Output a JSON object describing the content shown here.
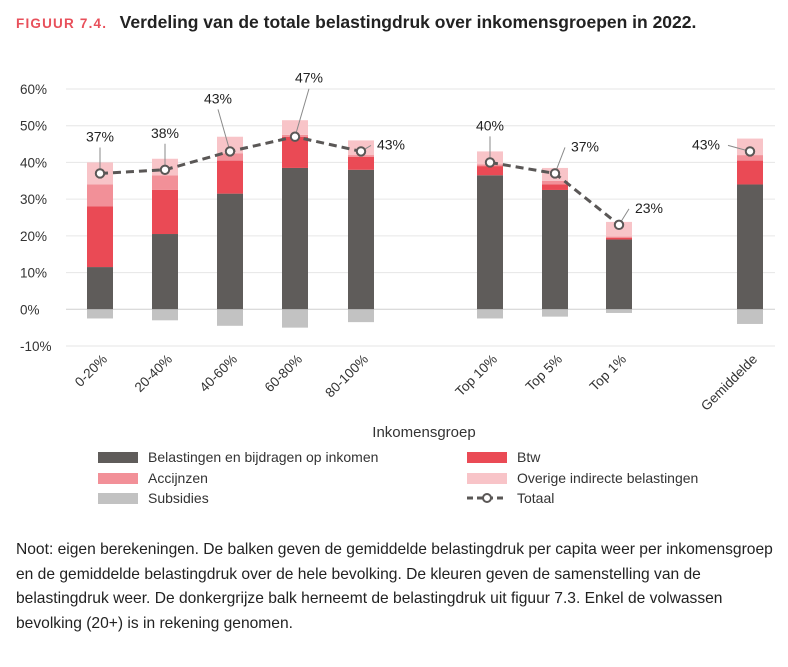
{
  "figure": {
    "label": "FIGUUR 7.4.",
    "title": "Verdeling van de totale belastingdruk over inkomensgroepen in 2022."
  },
  "note": "Noot: eigen berekeningen. De balken geven de gemiddelde belastingdruk per capita weer per inkomensgroep en de gemiddelde belastingdruk over de hele bevolking. De kleuren geven de samenstelling van de belastingdruk weer. De donkergrijze balk herneemt de belastingdruk uit figuur 7.3. Enkel de volwassen bevolking (20+) is in rekening genomen.",
  "chart_data": {
    "type": "bar",
    "stacked": true,
    "xlabel": "Inkomensgroep",
    "ylim": [
      -10,
      60
    ],
    "y_ticks": [
      -10,
      0,
      10,
      20,
      30,
      40,
      50,
      60
    ],
    "y_tick_suffix": "%",
    "categories": [
      "0-20%",
      "20-40%",
      "40-60%",
      "60-80%",
      "80-100%",
      "Top 10%",
      "Top 5%",
      "Top 1%",
      "Gemiddelde"
    ],
    "series": [
      {
        "name": "Belastingen en bijdragen op inkomen",
        "color": "#5f5c5a",
        "values": [
          11.5,
          20.5,
          31.5,
          38.5,
          38.0,
          36.5,
          32.5,
          19.0,
          34.0
        ]
      },
      {
        "name": "Btw",
        "color": "#ea4a55",
        "values": [
          16.5,
          12.0,
          9.0,
          8.5,
          3.5,
          2.5,
          1.5,
          0.5,
          6.5
        ]
      },
      {
        "name": "Accijnzen",
        "color": "#f29098",
        "values": [
          6.0,
          4.0,
          2.0,
          0.5,
          0.5,
          0.5,
          1.0,
          0.3,
          1.5
        ]
      },
      {
        "name": "Overige indirecte belastingen",
        "color": "#f8c4c8",
        "values": [
          6.0,
          4.5,
          4.5,
          4.0,
          4.0,
          3.5,
          3.5,
          4.0,
          4.5
        ]
      },
      {
        "name": "Subsidies",
        "color": "#c2c2c2",
        "values": [
          -2.5,
          -3.0,
          -4.5,
          -5.0,
          -3.5,
          -2.5,
          -2.0,
          -1.0,
          -4.0
        ]
      }
    ],
    "totals": {
      "name": "Totaal",
      "values": [
        37,
        38,
        43,
        47,
        43,
        40,
        37,
        23,
        43
      ],
      "labels": [
        "37%",
        "38%",
        "43%",
        "47%",
        "43%",
        "40%",
        "37%",
        "23%",
        "43%"
      ]
    },
    "legend_placement": "bottom",
    "grid": "horizontal"
  }
}
